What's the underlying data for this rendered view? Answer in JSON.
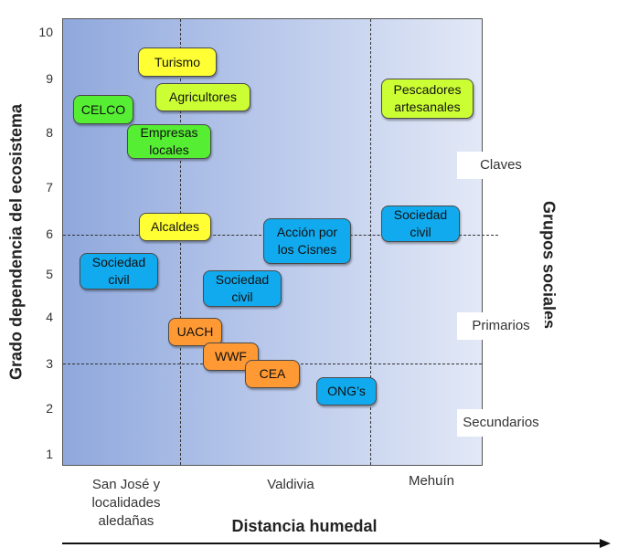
{
  "axes": {
    "y_label": "Grado dependencia del ecosistema",
    "x_label": "Distancia humedal",
    "right_label": "Grupos sociales",
    "y_ticks": [
      "10",
      "9",
      "8",
      "7",
      "6",
      "5",
      "4",
      "3",
      "2",
      "1"
    ],
    "x_categories": [
      "San José y localidades aledañas",
      "Valdivia",
      "Mehuín"
    ]
  },
  "group_labels": {
    "claves": "Claves",
    "primarios": "Primarios",
    "secundarios": "Secundarios"
  },
  "colors": {
    "yellow": "#ffff33",
    "lime": "#ccff33",
    "green": "#55ee33",
    "blue": "#11aaee",
    "orange": "#ff9933"
  },
  "actors": {
    "turismo": "Turismo",
    "agricultores": "Agricultores",
    "celco": "CELCO",
    "empresas_locales": "Empresas\nlocales",
    "pescadores": "Pescadores\nartesanales",
    "alcaldes": "Alcaldes",
    "accion_cisnes": "Acción por\nlos Cisnes",
    "sociedad_civil_mehuin": "Sociedad\ncivil",
    "sociedad_civil_sanjose": "Sociedad\ncivil",
    "sociedad_civil_valdivia": "Sociedad\ncivil",
    "uach": "UACH",
    "wwf": "WWF",
    "cea": "CEA",
    "ongs": "ONG’s"
  }
}
